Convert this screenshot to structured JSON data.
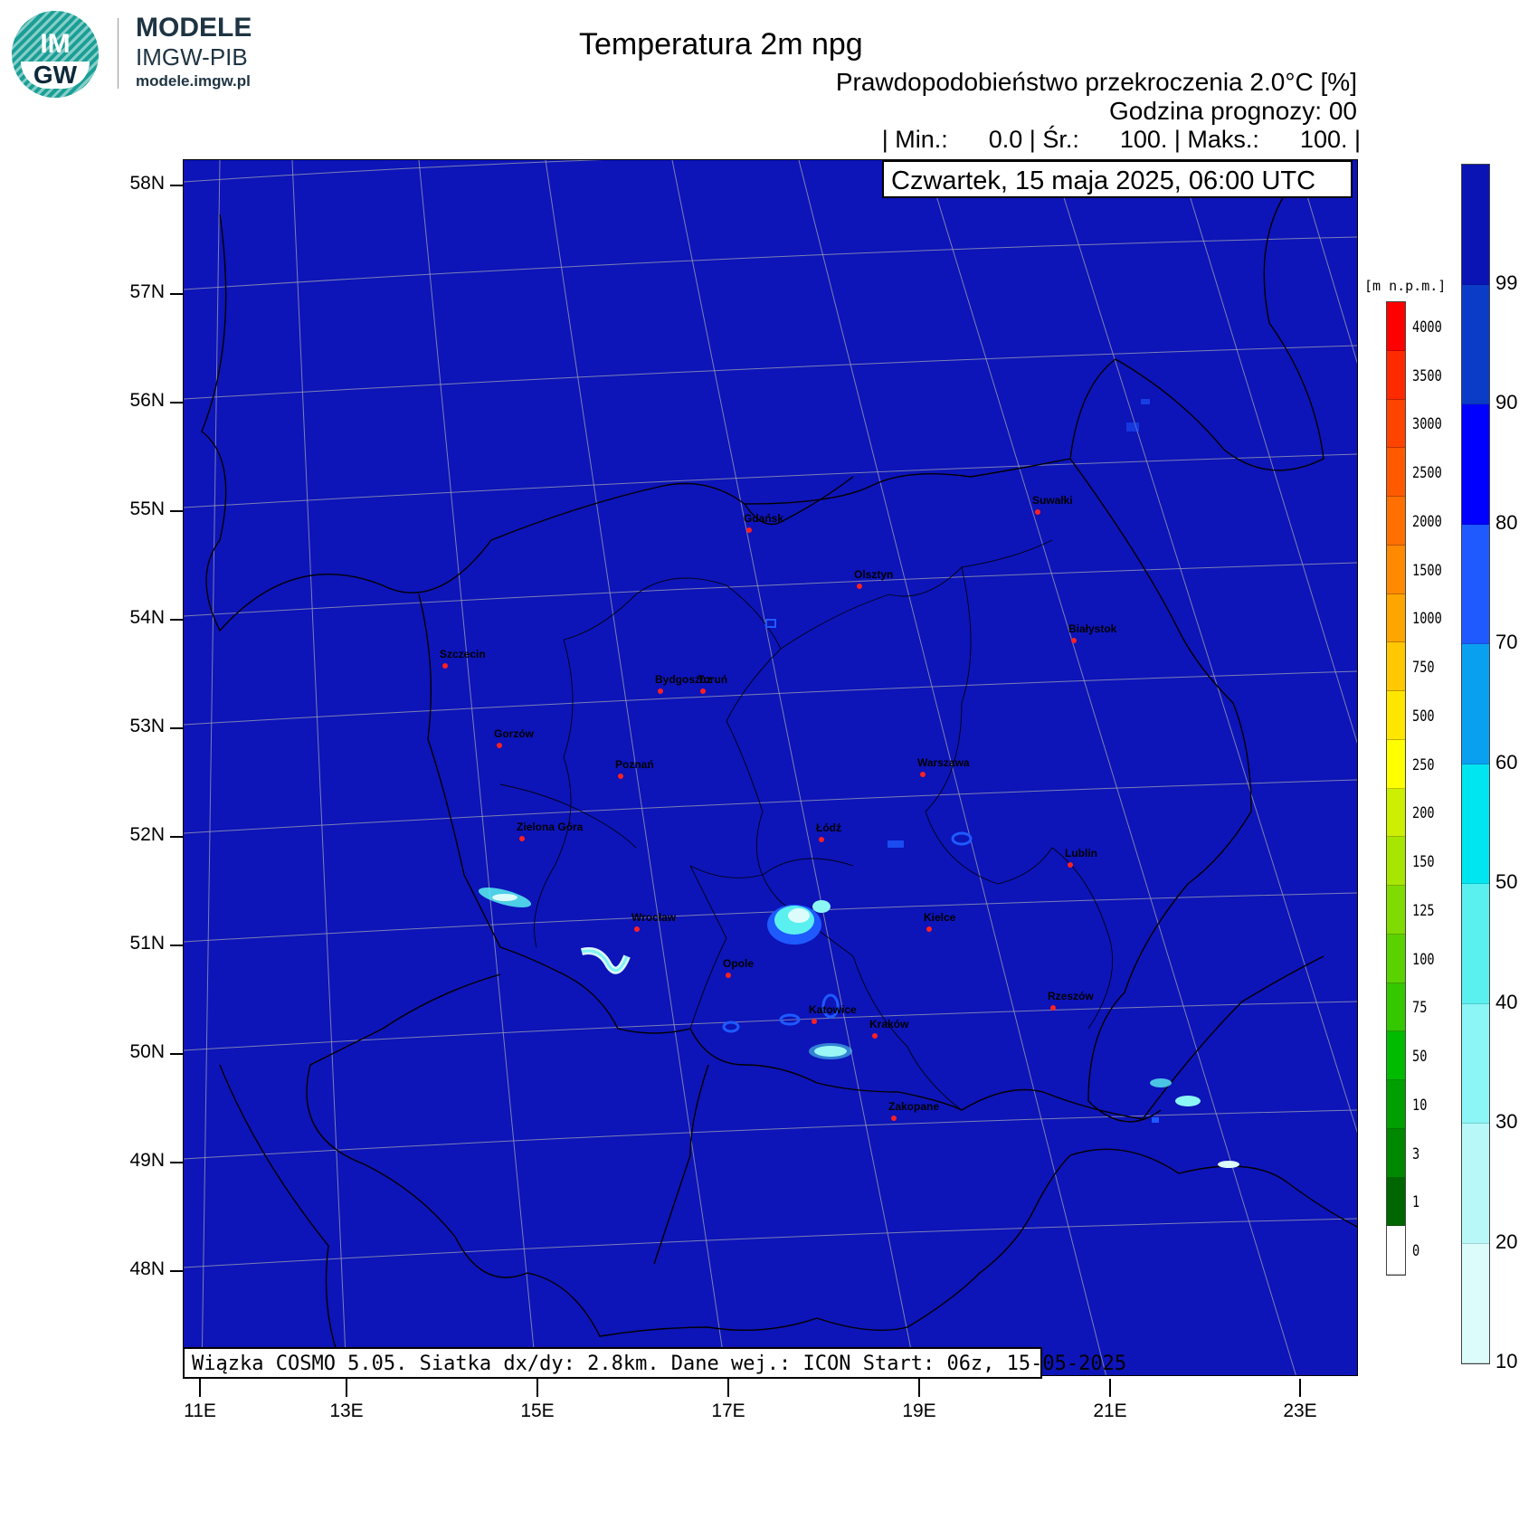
{
  "header": {
    "logo_text_top": "IM",
    "logo_text_bottom": "GW",
    "brand_title": "MODELE",
    "brand_subtitle": "IMGW-PIB",
    "brand_url": "modele.imgw.pl",
    "title": "Temperatura 2m npg",
    "subtitle": "Prawdopodobieństwo przekroczenia 2.0°C [%]",
    "forecast_hour": "Godzina prognozy: 00",
    "stats": "| Min.:      0.0 | Śr.:      100. | Maks.:      100. |",
    "date": "Czwartek, 15 maja 2025, 06:00 UTC"
  },
  "footer": {
    "text": "Wiązka COSMO 5.05. Siatka dx/dy: 2.8km. Dane wej.: ICON Start: 06z, 15-05-2025"
  },
  "map": {
    "background_color": "#0d14b8",
    "latitude_labels": [
      "58N",
      "57N",
      "56N",
      "55N",
      "54N",
      "53N",
      "52N",
      "51N",
      "50N",
      "49N",
      "48N"
    ],
    "longitude_labels": [
      "11E",
      "13E",
      "15E",
      "17E",
      "19E",
      "21E",
      "23E"
    ],
    "cities": [
      {
        "name": "Gdańsk"
      },
      {
        "name": "Suwałki"
      },
      {
        "name": "Olsztyn"
      },
      {
        "name": "Białystok"
      },
      {
        "name": "Szczecin"
      },
      {
        "name": "Bydgoszcz"
      },
      {
        "name": "Toruń"
      },
      {
        "name": "Gorzów"
      },
      {
        "name": "Poznań"
      },
      {
        "name": "Warszawa"
      },
      {
        "name": "Zielona Góra"
      },
      {
        "name": "Łódź"
      },
      {
        "name": "Lublin"
      },
      {
        "name": "Wrocław"
      },
      {
        "name": "Kielce"
      },
      {
        "name": "Opole"
      },
      {
        "name": "Rzeszów"
      },
      {
        "name": "Katowice"
      },
      {
        "name": "Kraków"
      },
      {
        "name": "Zakopane"
      }
    ]
  },
  "elevation_legend": {
    "title": "[m n.p.m.]",
    "labels": [
      "4000",
      "3500",
      "3000",
      "2500",
      "2000",
      "1500",
      "1000",
      "750",
      "500",
      "250",
      "200",
      "150",
      "125",
      "100",
      "75",
      "50",
      "10",
      "3",
      "1",
      "0"
    ],
    "colors": [
      "#ff0000",
      "#ff2a00",
      "#ff4400",
      "#ff5a00",
      "#ff7000",
      "#ff8a00",
      "#ffa500",
      "#ffc800",
      "#ffe600",
      "#ffff00",
      "#ccf000",
      "#a6e600",
      "#80dc00",
      "#5ad200",
      "#33c800",
      "#00bb00",
      "#00a000",
      "#008800",
      "#006600",
      "#ffffff"
    ]
  },
  "probability_legend": {
    "labels": [
      "99",
      "90",
      "80",
      "70",
      "60",
      "50",
      "40",
      "30",
      "20",
      "10"
    ],
    "colors": [
      "#0a14b4",
      "#0a3cc8",
      "#0000ff",
      "#1e5aff",
      "#0aa0f0",
      "#00e6f0",
      "#5af0f0",
      "#8cf5f5",
      "#b9f8f8",
      "#dcfcfc"
    ]
  }
}
